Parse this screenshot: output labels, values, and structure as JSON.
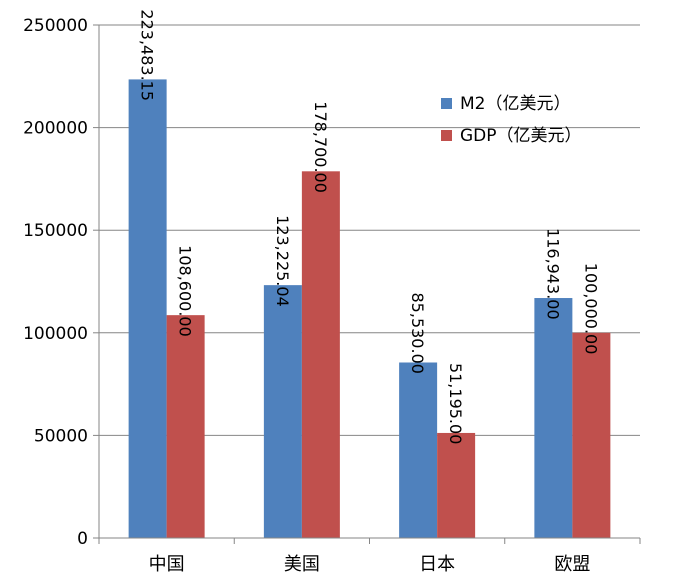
{
  "chart_data": {
    "type": "bar",
    "categories": [
      "中国",
      "美国",
      "日本",
      "欧盟"
    ],
    "series": [
      {
        "name": "M2（亿美元）",
        "values": [
          223483.15,
          123225.04,
          85530.0,
          116943.0
        ],
        "labels": [
          "223,483.15",
          "123,225.04",
          "85,530.00",
          "116,943.00"
        ],
        "color": "#4F81BD"
      },
      {
        "name": "GDP（亿美元）",
        "values": [
          108600.0,
          178700.0,
          51195.0,
          100000.0
        ],
        "labels": [
          "108,600.00",
          "178,700.00",
          "51,195.00",
          "100,000.00"
        ],
        "color": "#C0504D"
      }
    ],
    "ylim": [
      0,
      250000
    ],
    "yticks": [
      "0",
      "50000",
      "100000",
      "150000",
      "200000",
      "250000"
    ],
    "ytick_values": [
      0,
      50000,
      100000,
      150000,
      200000,
      250000
    ],
    "grid": true,
    "legend_position": "top-right",
    "data_label_orientation": "vertical"
  }
}
